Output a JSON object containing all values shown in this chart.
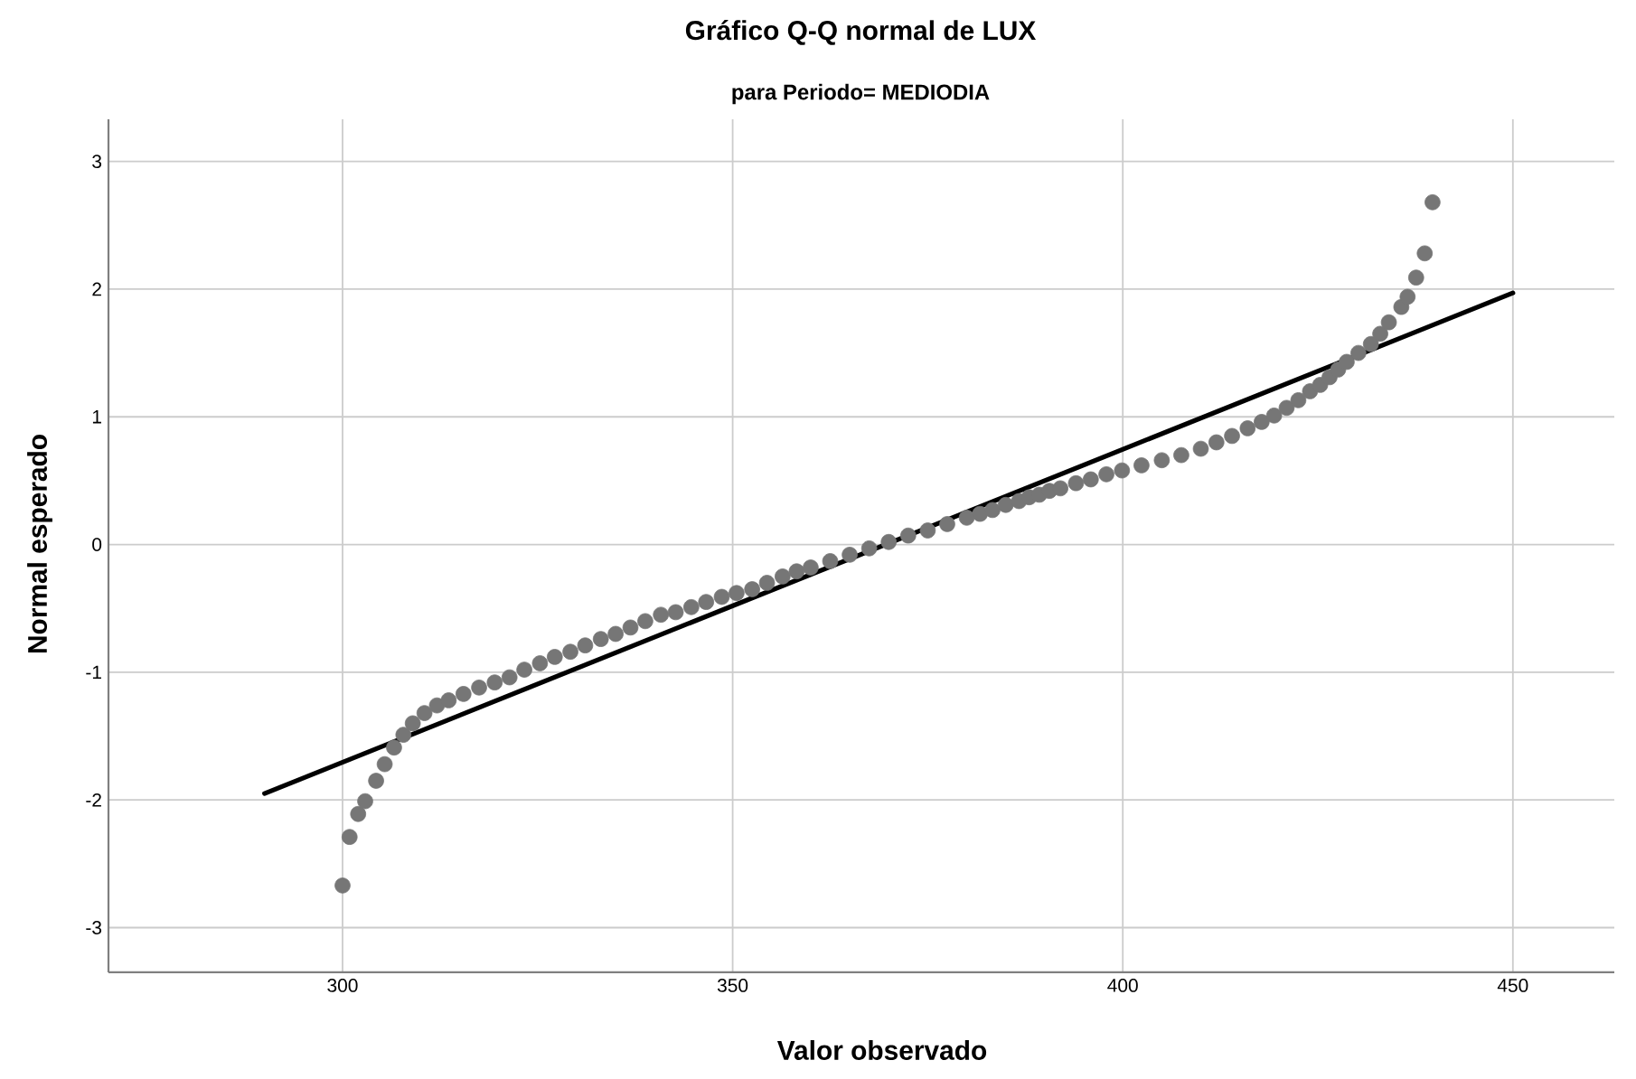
{
  "chart_data": {
    "type": "scatter",
    "title": "Gráfico Q-Q normal de LUX",
    "subtitle": "para Periodo= MEDIODIA",
    "xlabel": "Valor observado",
    "ylabel": "Normal esperado",
    "xlim": [
      270,
      463
    ],
    "ylim": [
      -3.35,
      3.33
    ],
    "xticks": [
      300,
      350,
      400,
      450
    ],
    "yticks": [
      -3,
      -2,
      -1,
      0,
      1,
      2,
      3
    ],
    "grid": true,
    "series": [
      {
        "color": "#767676",
        "marker": "circle",
        "x": [
          300.0,
          300.9,
          302.0,
          302.9,
          304.3,
          305.4,
          306.6,
          307.8,
          309.0,
          310.5,
          312.1,
          313.6,
          315.5,
          317.5,
          319.5,
          321.4,
          323.3,
          325.3,
          327.2,
          329.2,
          331.1,
          333.1,
          335.0,
          336.9,
          338.8,
          340.8,
          342.7,
          344.7,
          346.6,
          348.6,
          350.5,
          352.5,
          354.4,
          356.4,
          358.2,
          360.0,
          362.5,
          365.0,
          367.5,
          370.0,
          372.5,
          375.0,
          377.5,
          380.0,
          381.7,
          383.3,
          385.0,
          386.7,
          388.0,
          389.3,
          390.6,
          392.0,
          394.0,
          395.9,
          397.9,
          399.9,
          402.4,
          405.0,
          407.5,
          410.0,
          412.0,
          414.0,
          416.0,
          417.8,
          419.4,
          421.0,
          422.5,
          424.0,
          425.3,
          426.5,
          427.6,
          428.7,
          430.2,
          431.8,
          433.0,
          434.1,
          435.7,
          436.5,
          437.6,
          438.7,
          439.7
        ],
        "values": [
          -2.67,
          -2.29,
          -2.11,
          -2.01,
          -1.85,
          -1.72,
          -1.59,
          -1.49,
          -1.4,
          -1.32,
          -1.26,
          -1.22,
          -1.17,
          -1.12,
          -1.08,
          -1.04,
          -0.98,
          -0.93,
          -0.88,
          -0.84,
          -0.79,
          -0.74,
          -0.7,
          -0.65,
          -0.6,
          -0.55,
          -0.53,
          -0.49,
          -0.45,
          -0.41,
          -0.38,
          -0.35,
          -0.3,
          -0.25,
          -0.21,
          -0.18,
          -0.13,
          -0.08,
          -0.03,
          0.02,
          0.07,
          0.11,
          0.16,
          0.21,
          0.24,
          0.27,
          0.31,
          0.34,
          0.37,
          0.39,
          0.42,
          0.44,
          0.48,
          0.51,
          0.55,
          0.58,
          0.62,
          0.66,
          0.7,
          0.75,
          0.8,
          0.85,
          0.91,
          0.96,
          1.01,
          1.07,
          1.13,
          1.2,
          1.25,
          1.31,
          1.37,
          1.43,
          1.5,
          1.57,
          1.65,
          1.74,
          1.86,
          1.94,
          2.09,
          2.28,
          2.68
        ]
      },
      {
        "type": "line",
        "color": "#000000",
        "x": [
          290,
          450
        ],
        "values": [
          -1.95,
          1.97
        ]
      }
    ]
  }
}
